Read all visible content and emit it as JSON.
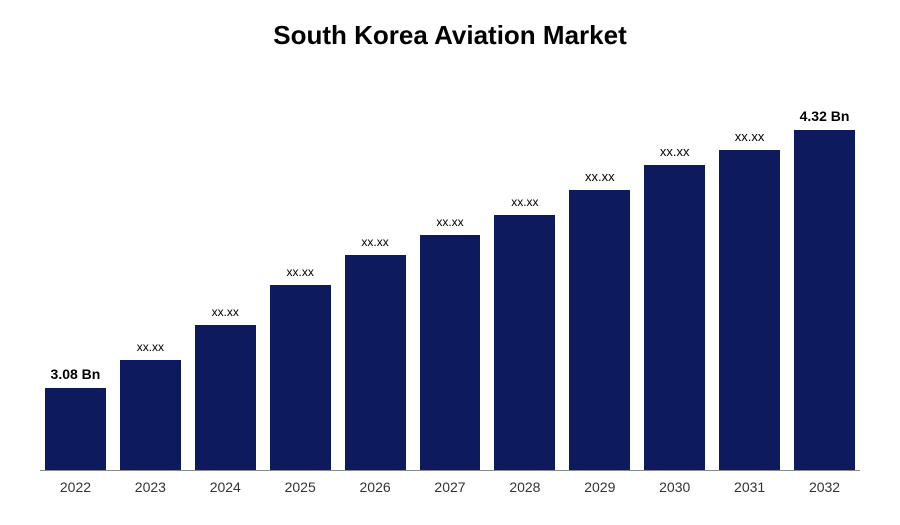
{
  "chart": {
    "type": "bar",
    "title": "South Korea Aviation Market",
    "title_fontsize": 26,
    "title_color": "#000000",
    "background_color": "#ffffff",
    "bar_color": "#0d1b5e",
    "axis_color": "#888888",
    "categories": [
      "2022",
      "2023",
      "2024",
      "2025",
      "2026",
      "2027",
      "2028",
      "2029",
      "2030",
      "2031",
      "2032"
    ],
    "values": [
      82,
      110,
      145,
      185,
      215,
      235,
      255,
      280,
      305,
      320,
      340
    ],
    "labels": [
      "3.08 Bn",
      "xx.xx",
      "xx.xx",
      "xx.xx",
      "xx.xx",
      "xx.xx",
      "xx.xx",
      "xx.xx",
      "xx.xx",
      "xx.xx",
      "4.32 Bn"
    ],
    "label_sizes": [
      "bold",
      "small",
      "small",
      "small",
      "small",
      "small",
      "small",
      "medium",
      "medium",
      "medium",
      "bold"
    ],
    "label_fontsize_bold": 14,
    "label_fontsize_small": 12,
    "label_fontsize_medium": 13,
    "xaxis_fontsize": 14,
    "max_height": 340
  }
}
